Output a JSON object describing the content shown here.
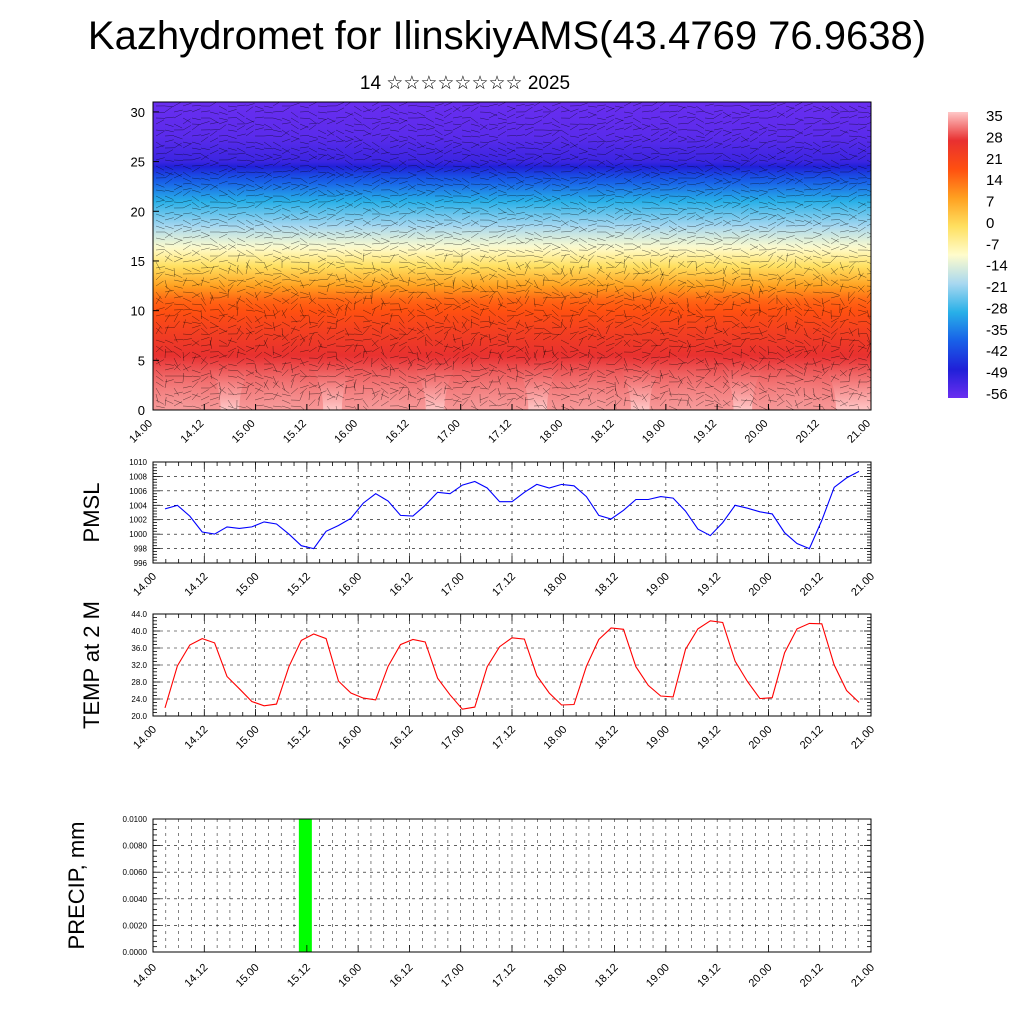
{
  "title": "Kazhydromet for IlinskiyAMS(43.4769 76.9638)",
  "subtitle": "14 ☆☆☆☆☆☆☆☆ 2025",
  "time_ticks": [
    "14.00",
    "14.12",
    "15.00",
    "15.12",
    "16.00",
    "16.12",
    "17.00",
    "17.12",
    "18.00",
    "18.12",
    "19.00",
    "19.12",
    "20.00",
    "20.12",
    "21.00"
  ],
  "chart_data": [
    {
      "type": "heatmap",
      "title": "",
      "xlabel": "",
      "ylabel": "",
      "x_ticks": [
        "14.00",
        "14.12",
        "15.00",
        "15.12",
        "16.00",
        "16.12",
        "17.00",
        "17.12",
        "18.00",
        "18.12",
        "19.00",
        "19.12",
        "20.00",
        "20.12",
        "21.00"
      ],
      "ylim": [
        0,
        31
      ],
      "y_ticks": [
        0,
        5,
        10,
        15,
        20,
        25,
        30
      ],
      "colorbar_labels": [
        "35",
        "28",
        "21",
        "14",
        "7",
        "0",
        "-7",
        "-14",
        "-21",
        "-28",
        "-35",
        "-42",
        "-49",
        "-56"
      ],
      "colorbar_colors": [
        "#ffc8c8",
        "#e83030",
        "#ff5010",
        "#ffa020",
        "#ffe060",
        "#fffccc",
        "#a8d8f0",
        "#28b0e8",
        "#1860e8",
        "#2020d8",
        "#6a2ef0"
      ],
      "profile_c_by_level": [
        {
          "level": 0,
          "value": 35
        },
        {
          "level": 3,
          "value": 30
        },
        {
          "level": 8,
          "value": 21
        },
        {
          "level": 11,
          "value": 14
        },
        {
          "level": 14,
          "value": 0
        },
        {
          "level": 16,
          "value": -10
        },
        {
          "level": 18.5,
          "value": -21
        },
        {
          "level": 21,
          "value": -30
        },
        {
          "level": 23.5,
          "value": -42
        },
        {
          "level": 25,
          "value": -52
        },
        {
          "level": 27.5,
          "value": -56
        },
        {
          "level": 31,
          "value": -58
        }
      ],
      "warm_maxima_x": [
        "14.06",
        "15.06",
        "16.06",
        "17.06",
        "18.06",
        "19.06",
        "20.06"
      ]
    },
    {
      "type": "line",
      "title": "",
      "ylabel": "PMSL",
      "ylim": [
        996,
        1010
      ],
      "y_ticks": [
        "996",
        "998",
        "1000",
        "1002",
        "1004",
        "1006",
        "1008",
        "1010"
      ],
      "x_index_range": [
        0,
        56
      ],
      "series": [
        {
          "color": "#0000ff",
          "values": [
            1003.5,
            1004,
            1002.5,
            1000.3,
            1000,
            1001,
            1000.8,
            1001,
            1001.7,
            1001.4,
            1000,
            998.4,
            998,
            1000.4,
            1001.2,
            1002.2,
            1004.3,
            1005.6,
            1004.6,
            1002.6,
            1002.5,
            1004,
            1005.8,
            1005.6,
            1006.8,
            1007.3,
            1006.4,
            1004.5,
            1004.5,
            1005.8,
            1006.9,
            1006.4,
            1006.9,
            1006.7,
            1005.2,
            1002.6,
            1002.1,
            1003.3,
            1004.8,
            1004.8,
            1005.2,
            1005,
            1003.2,
            1000.7,
            999.8,
            1001.6,
            1004,
            1003.6,
            1003.1,
            1002.8,
            1000.2,
            998.7,
            998,
            1001.9,
            1006.5,
            1007.8,
            1008.7
          ]
        }
      ]
    },
    {
      "type": "line",
      "title": "",
      "ylabel": "TEMP at 2 M",
      "ylim": [
        20,
        44
      ],
      "y_ticks": [
        "20.0",
        "24.0",
        "28.0",
        "32.0",
        "36.0",
        "40.0",
        "44.0"
      ],
      "x_index_range": [
        0,
        56
      ],
      "series": [
        {
          "color": "#ff0000",
          "values": [
            21.9,
            31.8,
            36.7,
            38.2,
            37.2,
            29.3,
            26.4,
            23.4,
            22.4,
            22.8,
            31.6,
            37.8,
            39.3,
            38.2,
            28.2,
            25.4,
            24.2,
            23.8,
            31.7,
            36.8,
            38,
            37.4,
            28.9,
            25,
            21.6,
            22.1,
            31.6,
            36.3,
            38.4,
            38.1,
            29.5,
            25.4,
            22.6,
            22.7,
            31.7,
            38,
            40.7,
            40.4,
            31.6,
            27.2,
            24.7,
            24.5,
            35.7,
            40.5,
            42.4,
            42,
            32.9,
            28.1,
            24.1,
            24.3,
            34.9,
            40.5,
            41.8,
            41.7,
            32,
            26,
            23.2
          ]
        }
      ]
    },
    {
      "type": "bar",
      "title": "",
      "ylabel": "PRECIP, mm",
      "ylim": [
        0,
        0.01
      ],
      "y_ticks": [
        "0.0000",
        "0.0020",
        "0.0040",
        "0.0060",
        "0.0080",
        "0.0100"
      ],
      "color": "#00ff00",
      "bars": [
        {
          "x": "15.12",
          "value": 0.01
        }
      ]
    }
  ]
}
